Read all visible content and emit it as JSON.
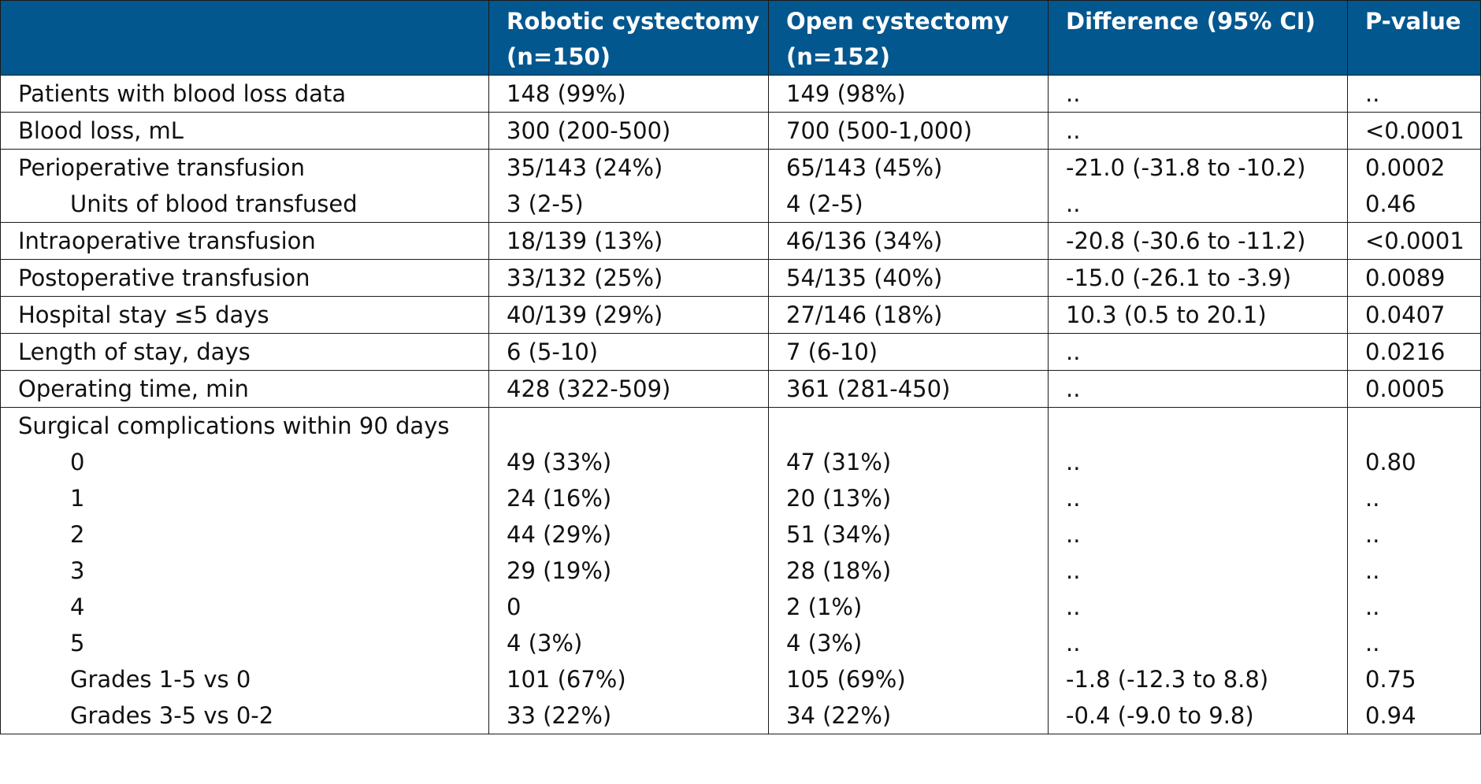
{
  "header": {
    "col0": "",
    "col1": "Robotic cystectomy (n=150)",
    "col2": "Open cystectomy (n=152)",
    "col3": "Difference (95% CI)",
    "col4": "P-value"
  },
  "rows": [
    {
      "label": "Patients with blood loss data",
      "robotic": "148 (99%)",
      "open": "149 (98%)",
      "diff": "..",
      "p": ".."
    },
    {
      "label": "Blood loss, mL",
      "robotic": "300 (200-500)",
      "open": "700 (500-1,000)",
      "diff": "..",
      "p": "<0.0001"
    },
    {
      "label": "Perioperative transfusion",
      "robotic": "35/143 (24%)",
      "open": "65/143 (45%)",
      "diff": "-21.0 (-31.8 to -10.2)",
      "p": "0.0002"
    },
    {
      "label": "Units of blood transfused",
      "robotic": "3 (2-5)",
      "open": "4 (2-5)",
      "diff": "..",
      "p": "0.46"
    },
    {
      "label": "Intraoperative transfusion",
      "robotic": "18/139 (13%)",
      "open": "46/136 (34%)",
      "diff": "-20.8 (-30.6 to -11.2)",
      "p": "<0.0001"
    },
    {
      "label": "Postoperative transfusion",
      "robotic": "33/132 (25%)",
      "open": "54/135 (40%)",
      "diff": "-15.0 (-26.1 to -3.9)",
      "p": "0.0089"
    },
    {
      "label": "Hospital stay ≤5 days",
      "robotic": "40/139 (29%)",
      "open": "27/146 (18%)",
      "diff": "10.3 (0.5 to 20.1)",
      "p": "0.0407"
    },
    {
      "label": "Length of stay, days",
      "robotic": "6 (5-10)",
      "open": "7 (6-10)",
      "diff": "..",
      "p": "0.0216"
    },
    {
      "label": "Operating time, min",
      "robotic": "428 (322-509)",
      "open": "361 (281-450)",
      "diff": "..",
      "p": "0.0005"
    },
    {
      "label": "Surgical complications within 90 days",
      "robotic": "",
      "open": "",
      "diff": "",
      "p": ""
    },
    {
      "label": "0",
      "robotic": "49 (33%)",
      "open": "47 (31%)",
      "diff": "..",
      "p": "0.80"
    },
    {
      "label": "1",
      "robotic": "24 (16%)",
      "open": "20 (13%)",
      "diff": "..",
      "p": ".."
    },
    {
      "label": "2",
      "robotic": "44 (29%)",
      "open": "51 (34%)",
      "diff": "..",
      "p": ".."
    },
    {
      "label": "3",
      "robotic": "29 (19%)",
      "open": "28 (18%)",
      "diff": "..",
      "p": ".."
    },
    {
      "label": "4",
      "robotic": "0",
      "open": "2 (1%)",
      "diff": "..",
      "p": ".."
    },
    {
      "label": "5",
      "robotic": "4 (3%)",
      "open": "4 (3%)",
      "diff": "..",
      "p": ".."
    },
    {
      "label": "Grades 1-5 vs 0",
      "robotic": "101 (67%)",
      "open": "105 (69%)",
      "diff": "-1.8 (-12.3 to 8.8)",
      "p": "0.75"
    },
    {
      "label": "Grades 3-5 vs 0-2",
      "robotic": "33 (22%)",
      "open": "34 (22%)",
      "diff": "-0.4 (-9.0 to 9.8)",
      "p": "0.94"
    }
  ]
}
